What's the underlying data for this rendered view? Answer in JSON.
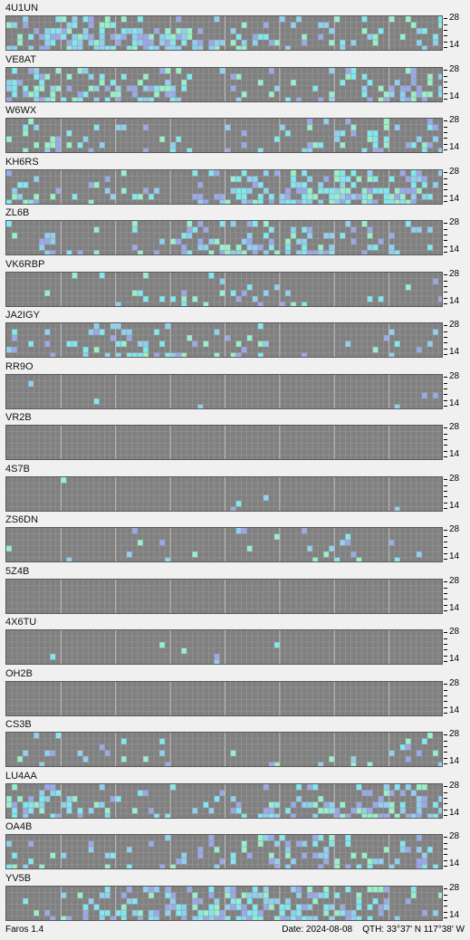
{
  "bands": {
    "top_label": "28",
    "bottom_label": "14"
  },
  "colors": {
    "grid_bg": "#808080",
    "grid_line": "#9a9a9a",
    "minor_line": "#c4c4c4",
    "levels": [
      "#8c8c8c",
      "#9aa8e8",
      "#8fd0f0",
      "#80e8f0",
      "#98f0c8"
    ]
  },
  "stations": [
    {
      "call": "4U1UN",
      "activity": 0.55
    },
    {
      "call": "VE8AT",
      "activity": 0.4
    },
    {
      "call": "W6WX",
      "activity": 0.22
    },
    {
      "call": "KH6RS",
      "activity": 0.62
    },
    {
      "call": "ZL6B",
      "activity": 0.38
    },
    {
      "call": "VK6RBP",
      "activity": 0.14
    },
    {
      "call": "JA2IGY",
      "activity": 0.25
    },
    {
      "call": "RR9O",
      "activity": 0.02
    },
    {
      "call": "VR2B",
      "activity": 0.0
    },
    {
      "call": "4S7B",
      "activity": 0.01
    },
    {
      "call": "ZS6DN",
      "activity": 0.06
    },
    {
      "call": "5Z4B",
      "activity": 0.0
    },
    {
      "call": "4X6TU",
      "activity": 0.02
    },
    {
      "call": "OH2B",
      "activity": 0.0
    },
    {
      "call": "CS3B",
      "activity": 0.18
    },
    {
      "call": "LU4AA",
      "activity": 0.45
    },
    {
      "call": "OA4B",
      "activity": 0.32
    },
    {
      "call": "YV5B",
      "activity": 0.6
    }
  ],
  "footer": {
    "app": "Faros 1.4",
    "date": "Date: 2024-08-08",
    "qth": "QTH: 33°37' N  117°38' W"
  }
}
